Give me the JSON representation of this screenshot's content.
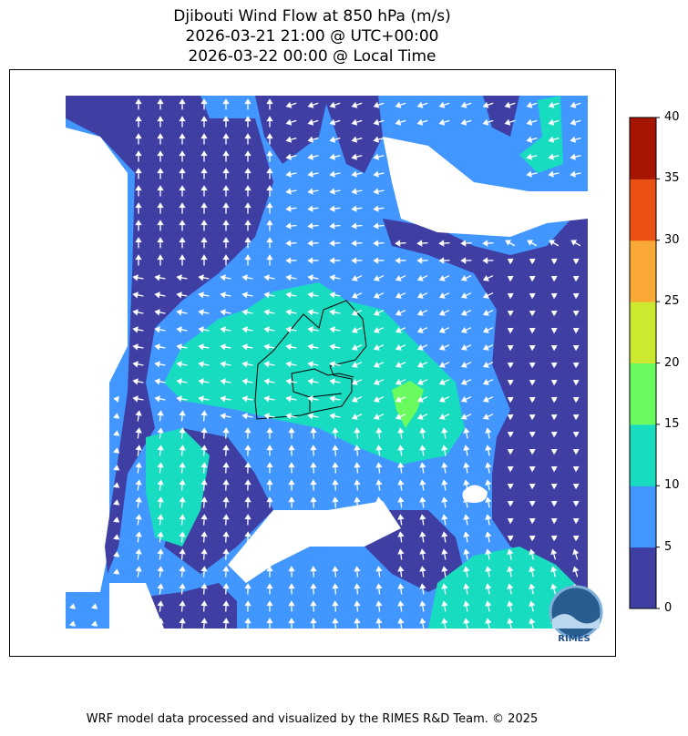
{
  "title": {
    "line1": "Djibouti Wind Flow at 850 hPa (m/s)",
    "line2": "2026-03-21 21:00 @ UTC+00:00",
    "line3": "2026-03-22 00:00 @ Local Time"
  },
  "colorbar": {
    "ticks": [
      "0",
      "5",
      "10",
      "15",
      "20",
      "25",
      "30",
      "35",
      "40"
    ],
    "levels": [
      0,
      5,
      10,
      15,
      20,
      25,
      30,
      35,
      40
    ],
    "colors": [
      "#3f3fa3",
      "#4196ff",
      "#18dcc0",
      "#6afc5e",
      "#cde92f",
      "#faa936",
      "#ec5114",
      "#a51502"
    ]
  },
  "logo": {
    "text": "RIMES"
  },
  "footer": "WRF model data processed and visualized by the RIMES R&D Team. © 2025",
  "chart_data": {
    "type": "heatmap",
    "title": "Djibouti Wind Flow at 850 hPa (m/s)",
    "colorbar_range": [
      0,
      40
    ],
    "colorbar_step": 5,
    "dominant_flow": "easterly / south-easterly, wind vectors shown as white arrows",
    "max_region_speed_range": [
      15,
      20
    ]
  }
}
